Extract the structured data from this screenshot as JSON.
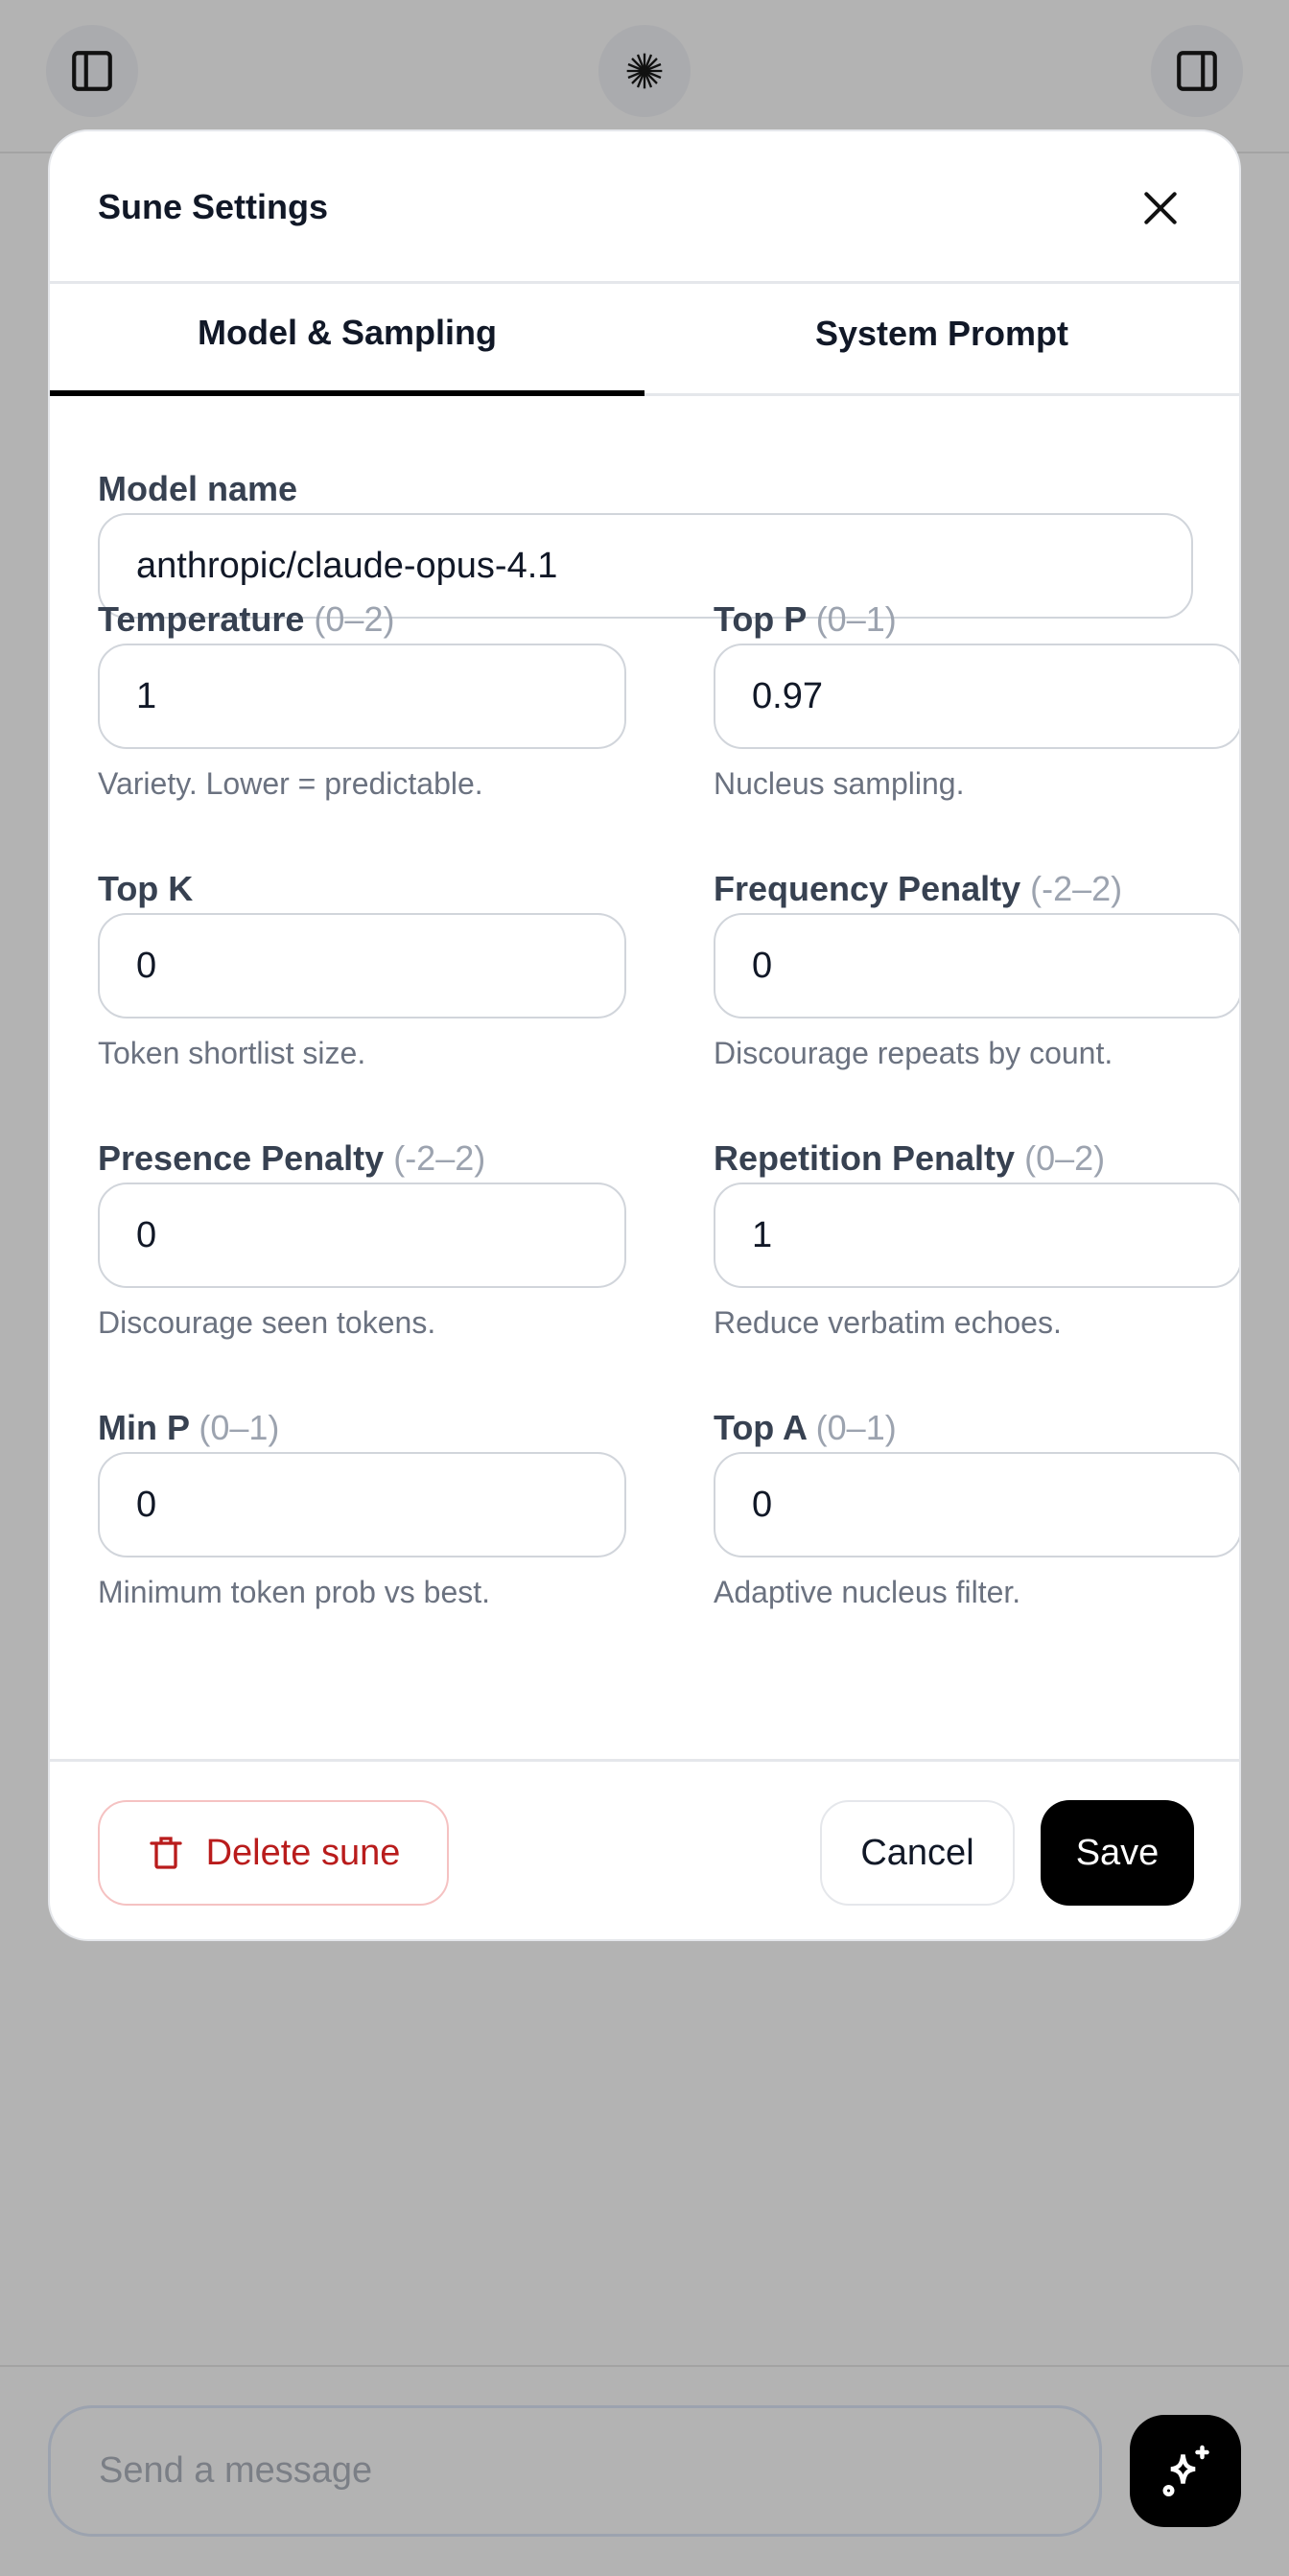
{
  "topbar": {
    "left_icon": "sidebar-left-icon",
    "center_icon": "sune-logo-icon",
    "right_icon": "sidebar-right-icon"
  },
  "modal": {
    "title": "Sune Settings",
    "tabs": [
      {
        "label": "Model & Sampling",
        "active": true
      },
      {
        "label": "System Prompt",
        "active": false
      }
    ],
    "model_name": {
      "label": "Model name",
      "value": "anthropic/claude-opus-4.1"
    },
    "fields": [
      {
        "label": "Temperature",
        "range": "(0–2)",
        "value": "1",
        "help": "Variety. Lower = predictable."
      },
      {
        "label": "Top P",
        "range": "(0–1)",
        "value": "0.97",
        "help": "Nucleus sampling."
      },
      {
        "label": "Top K",
        "range": "",
        "value": "0",
        "help": "Token shortlist size."
      },
      {
        "label": "Frequency Penalty",
        "range": "(-2–2)",
        "value": "0",
        "help": "Discourage repeats by count."
      },
      {
        "label": "Presence Penalty",
        "range": "(-2–2)",
        "value": "0",
        "help": "Discourage seen tokens."
      },
      {
        "label": "Repetition Penalty",
        "range": "(0–2)",
        "value": "1",
        "help": "Reduce verbatim echoes."
      },
      {
        "label": "Min P",
        "range": "(0–1)",
        "value": "0",
        "help": "Minimum token prob vs best."
      },
      {
        "label": "Top A",
        "range": "(0–1)",
        "value": "0",
        "help": "Adaptive nucleus filter."
      }
    ],
    "footer": {
      "delete_label": "Delete sune",
      "cancel_label": "Cancel",
      "save_label": "Save"
    }
  },
  "composer": {
    "placeholder": "Send a message",
    "send_icon": "sparkles-icon"
  },
  "colors": {
    "danger": "#b91c1c",
    "primary": "#000000",
    "overlay": "#b3b3b3"
  }
}
